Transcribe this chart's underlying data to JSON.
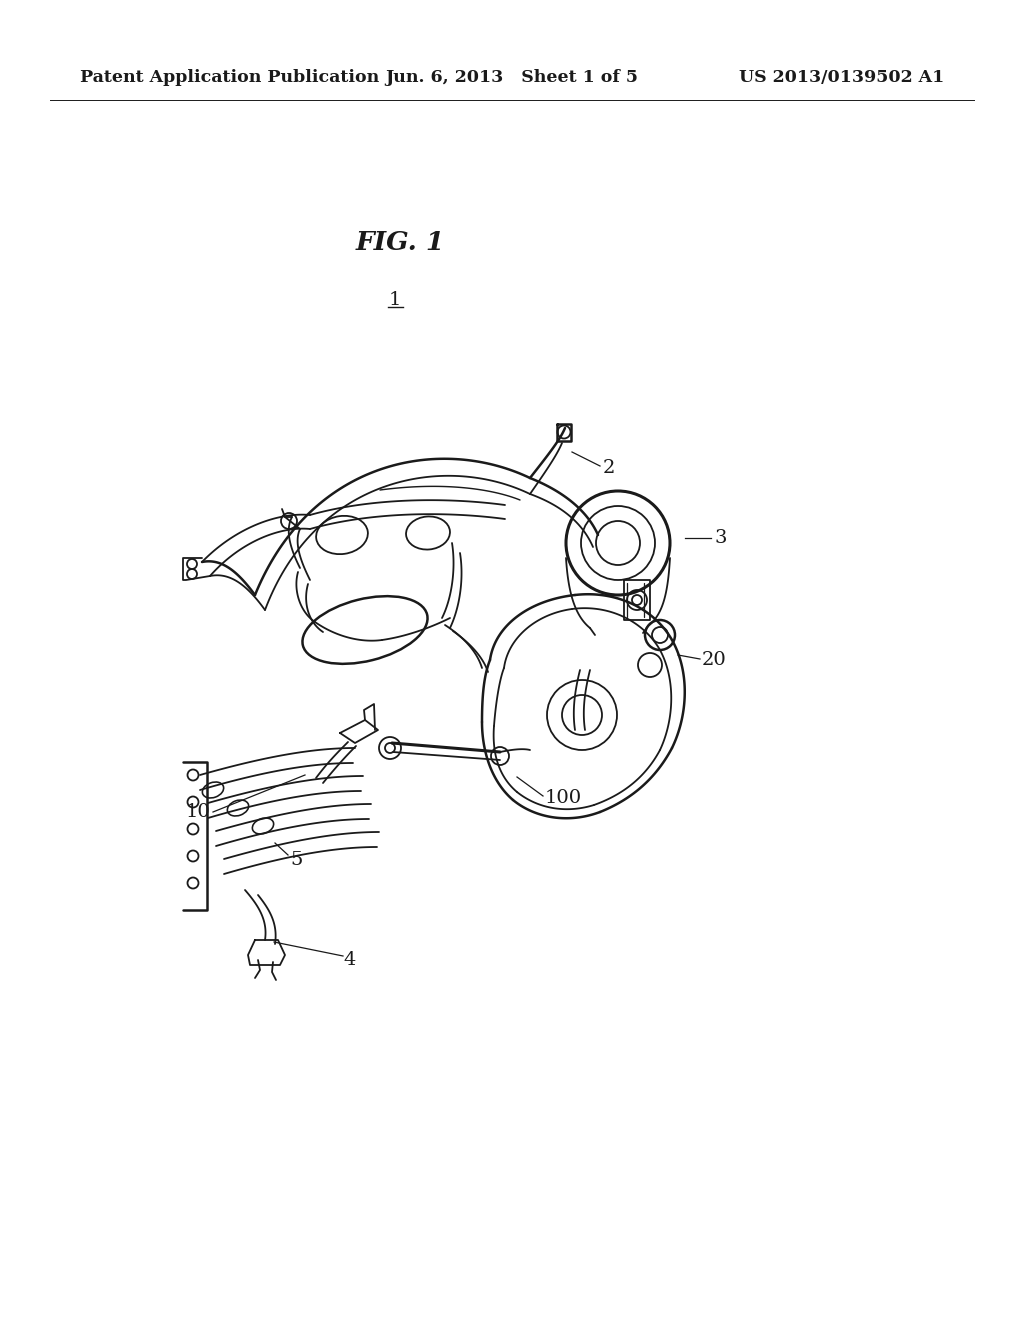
{
  "background_color": "#ffffff",
  "header_left": "Patent Application Publication",
  "header_center": "Jun. 6, 2013   Sheet 1 of 5",
  "header_right": "US 2013/0139502 A1",
  "fig_label": "FIG. 1",
  "line_color": "#1a1a1a",
  "header_fontsize": 12.5,
  "fig_label_fontsize": 19,
  "part_label_fontsize": 14,
  "page_width": 10.24,
  "page_height": 13.2
}
